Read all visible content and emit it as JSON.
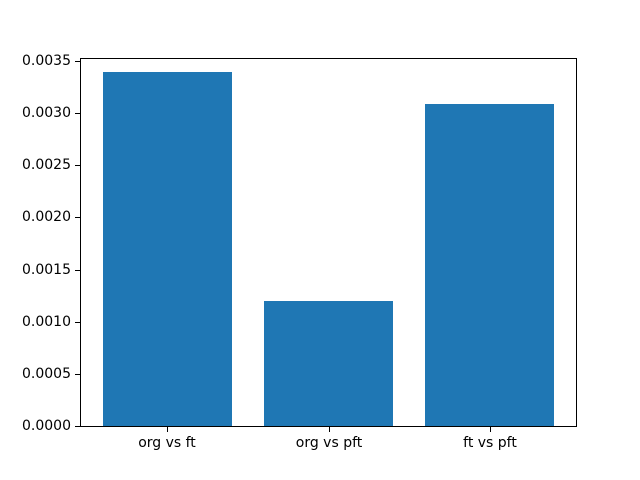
{
  "figure": {
    "background": "#ffffff"
  },
  "chart_data": {
    "type": "bar",
    "categories": [
      "org vs ft",
      "org vs pft",
      "ft vs pft"
    ],
    "values": [
      0.00339,
      0.0012,
      0.00309
    ],
    "title": "",
    "xlabel": "",
    "ylabel": "",
    "ytick_labels": [
      "0.0000",
      "0.0005",
      "0.0010",
      "0.0015",
      "0.0020",
      "0.0025",
      "0.0030",
      "0.0035"
    ],
    "yticks": [
      0.0,
      0.0005,
      0.001,
      0.0015,
      0.002,
      0.0025,
      0.003,
      0.0035
    ],
    "ylim": [
      0,
      0.003537
    ],
    "grid": false,
    "legend": null,
    "bar_color": "#1f77b4",
    "layout": {
      "xlim": [
        -0.54,
        2.54
      ],
      "bar_width": 0.8
    }
  }
}
